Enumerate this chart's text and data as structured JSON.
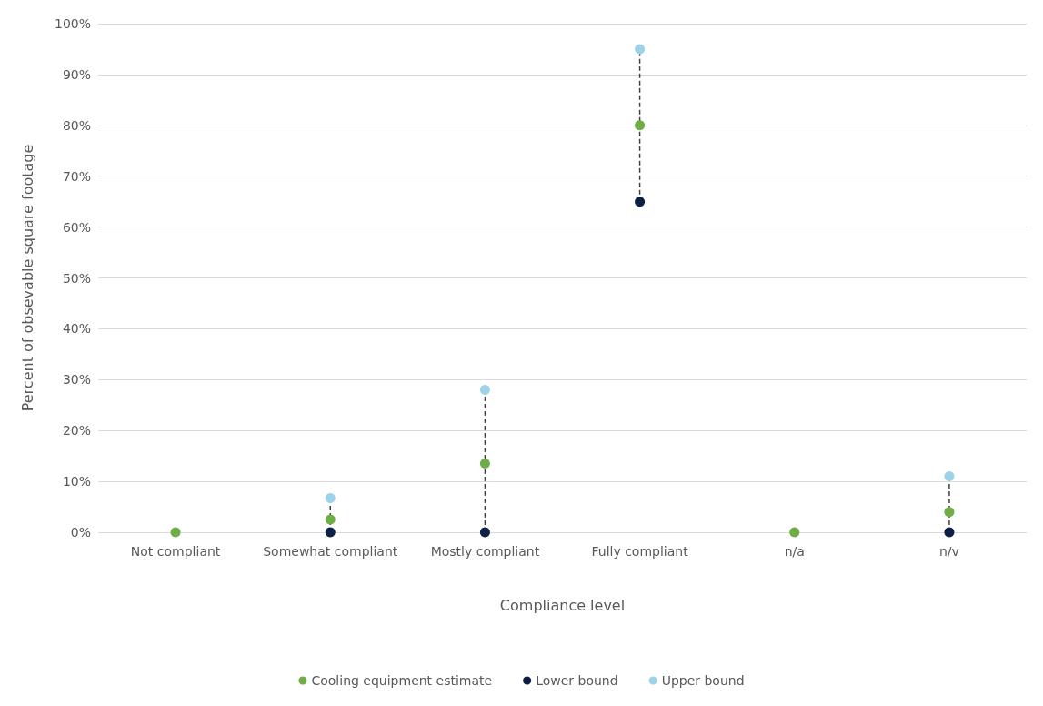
{
  "chart_data": {
    "type": "scatter",
    "xlabel": "Compliance level",
    "ylabel": "Percent of obsevable square footage",
    "categories": [
      "Not compliant",
      "Somewhat compliant",
      "Mostly compliant",
      "Fully compliant",
      "n/a",
      "n/v"
    ],
    "series": [
      {
        "name": "Cooling equipment estimate",
        "color": "#70ad47",
        "values": [
          0,
          2.5,
          13.5,
          80,
          0,
          4
        ]
      },
      {
        "name": "Lower bound",
        "color": "#0e1f45",
        "values": [
          null,
          0,
          0,
          65,
          null,
          0
        ]
      },
      {
        "name": "Upper bound",
        "color": "#9dd3e8",
        "values": [
          null,
          6.7,
          28,
          95,
          null,
          11
        ]
      },
      {
        "type": "line",
        "color": "#404040",
        "line_style": "dashed",
        "marker": "none",
        "x": [
          "Somewhat compliant",
          "Somewhat compliant"
        ],
        "values": [
          0,
          6.7
        ]
      },
      {
        "type": "line",
        "color": "#404040",
        "line_style": "dashed",
        "marker": "none",
        "x": [
          "Mostly compliant",
          "Mostly compliant"
        ],
        "values": [
          0,
          28
        ]
      },
      {
        "type": "line",
        "color": "#404040",
        "line_style": "dashed",
        "marker": "none",
        "x": [
          "Fully compliant",
          "Fully compliant"
        ],
        "values": [
          65,
          95
        ]
      },
      {
        "type": "line",
        "color": "#404040",
        "line_style": "dashed",
        "marker": "none",
        "x": [
          "n/v",
          "n/v"
        ],
        "values": [
          0,
          11
        ]
      }
    ],
    "ylim": [
      0,
      100
    ],
    "yticks": [
      {
        "value": 0,
        "label": "0%"
      },
      {
        "value": 10,
        "label": "10%"
      },
      {
        "value": 20,
        "label": "20%"
      },
      {
        "value": 30,
        "label": "30%"
      },
      {
        "value": 40,
        "label": "40%"
      },
      {
        "value": 50,
        "label": "50%"
      },
      {
        "value": 60,
        "label": "60%"
      },
      {
        "value": 70,
        "label": "70%"
      },
      {
        "value": 80,
        "label": "80%"
      },
      {
        "value": 90,
        "label": "90%"
      },
      {
        "value": 100,
        "label": "100%"
      }
    ],
    "grid": "y",
    "legend": "bottom",
    "marker": "circle"
  }
}
